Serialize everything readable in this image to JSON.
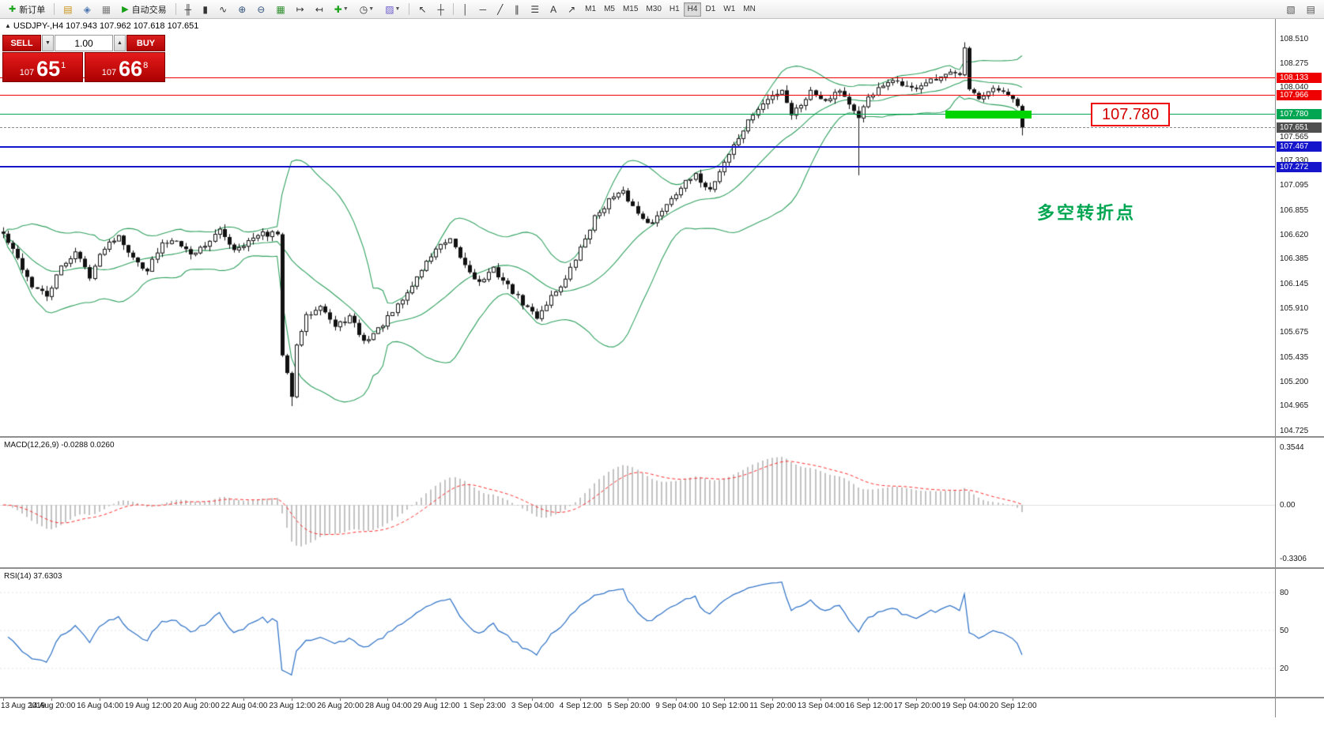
{
  "toolbar": {
    "items": [
      {
        "t": "btn",
        "name": "new-order-button",
        "glyph": "✚",
        "gc": "#1ca41c",
        "label": "新订单"
      },
      {
        "t": "sep"
      },
      {
        "t": "ico",
        "name": "market-watch-icon",
        "glyph": "▤",
        "gc": "#c89010"
      },
      {
        "t": "ico",
        "name": "navigator-icon",
        "glyph": "◈",
        "gc": "#4a74b0"
      },
      {
        "t": "ico",
        "name": "terminal-icon",
        "glyph": "▦",
        "gc": "#7a7a7a"
      },
      {
        "t": "btn",
        "name": "auto-trading-button",
        "glyph": "▶",
        "gc": "#17a017",
        "label": "自动交易"
      },
      {
        "t": "sep"
      },
      {
        "t": "ico",
        "name": "bar-chart-icon",
        "glyph": "╫",
        "gc": "#333333"
      },
      {
        "t": "ico",
        "name": "candlestick-chart-icon",
        "glyph": "▮",
        "gc": "#333333"
      },
      {
        "t": "ico",
        "name": "line-chart-icon",
        "glyph": "∿",
        "gc": "#333333"
      },
      {
        "t": "ico",
        "name": "zoom-in-icon",
        "glyph": "⊕",
        "gc": "#33527d"
      },
      {
        "t": "ico",
        "name": "zoom-out-icon",
        "glyph": "⊖",
        "gc": "#33527d"
      },
      {
        "t": "ico",
        "name": "tile-windows-icon",
        "glyph": "▦",
        "gc": "#2f8f2f"
      },
      {
        "t": "ico",
        "name": "auto-scroll-icon",
        "glyph": "↦",
        "gc": "#333333"
      },
      {
        "t": "ico",
        "name": "chart-shift-icon",
        "glyph": "↤",
        "gc": "#333333"
      },
      {
        "t": "ico",
        "name": "indicators-icon",
        "glyph": "✚",
        "gc": "#1ca41c",
        "dd": true
      },
      {
        "t": "ico",
        "name": "periods-icon",
        "glyph": "◷",
        "gc": "#333333",
        "dd": true
      },
      {
        "t": "ico",
        "name": "templates-icon",
        "glyph": "▨",
        "gc": "#6a5acd",
        "dd": true
      },
      {
        "t": "sep"
      },
      {
        "t": "ico",
        "name": "cursor-icon",
        "glyph": "↖",
        "gc": "#333333"
      },
      {
        "t": "ico",
        "name": "crosshair-icon",
        "glyph": "┼",
        "gc": "#333333"
      },
      {
        "t": "sep"
      },
      {
        "t": "ico",
        "name": "vertical-line-icon",
        "glyph": "│",
        "gc": "#333333"
      },
      {
        "t": "ico",
        "name": "horizontal-line-icon",
        "glyph": "─",
        "gc": "#333333"
      },
      {
        "t": "ico",
        "name": "trendline-icon",
        "glyph": "╱",
        "gc": "#333333"
      },
      {
        "t": "ico",
        "name": "channel-icon",
        "glyph": "∥",
        "gc": "#333333"
      },
      {
        "t": "ico",
        "name": "fibonacci-icon",
        "glyph": "☰",
        "gc": "#333333"
      },
      {
        "t": "ico",
        "name": "text-tool-icon",
        "glyph": "A",
        "gc": "#333333"
      },
      {
        "t": "ico",
        "name": "arrows-tool-icon",
        "glyph": "↗",
        "gc": "#333333"
      },
      {
        "t": "tf"
      },
      {
        "t": "spring"
      },
      {
        "t": "ico",
        "name": "new-chart-icon",
        "glyph": "▧",
        "gc": "#555555"
      },
      {
        "t": "ico",
        "name": "profiles-icon",
        "glyph": "▤",
        "gc": "#555555"
      }
    ],
    "timeframes": [
      "M1",
      "M5",
      "M15",
      "M30",
      "H1",
      "H4",
      "D1",
      "W1",
      "MN"
    ],
    "active_timeframe": "H4"
  },
  "chart": {
    "collapse_icon": "▲",
    "symbol_header": "USDJPY-,H4  107.943 107.962 107.618 107.651",
    "axis_labels": [
      "108.510",
      "108.275",
      "108.040",
      "107.565",
      "107.330",
      "107.095",
      "106.855",
      "106.620",
      "106.385",
      "106.145",
      "105.910",
      "105.675",
      "105.435",
      "105.200",
      "104.965",
      "104.725"
    ],
    "levels": [
      {
        "price": 108.133,
        "label": "108.133",
        "color": "#ee0000",
        "width": 1
      },
      {
        "price": 107.966,
        "label": "107.966",
        "color": "#ee0000",
        "width": 1
      },
      {
        "price": 107.78,
        "label": "107.780",
        "color": "#00A651",
        "width": 1
      },
      {
        "price": 107.467,
        "label": "107.467",
        "color": "#1515cc",
        "width": 2
      },
      {
        "price": 107.272,
        "label": "107.272",
        "color": "#1515cc",
        "width": 2
      }
    ],
    "current_price": {
      "value": 107.651,
      "label": "107.651",
      "badge_bg": "#4f4f4f"
    },
    "annotation": {
      "text": "多空转折点",
      "color": "#00A651"
    },
    "callout": {
      "text": "107.780"
    },
    "highlight": {
      "color": "#00d400"
    }
  },
  "trade_panel": {
    "sell_label": "SELL",
    "buy_label": "BUY",
    "volume": "1.00",
    "vol_down_icon": "▼",
    "vol_up_icon": "▲",
    "sell_price": {
      "prefix": "107",
      "big": "65",
      "sup": "1"
    },
    "buy_price": {
      "prefix": "107",
      "big": "66",
      "sup": "8"
    }
  },
  "macd": {
    "header": "MACD(12,26,9) -0.0288 0.0260",
    "axis_labels": [
      "0.3544",
      "0.00",
      "-0.3306"
    ]
  },
  "rsi": {
    "header": "RSI(14) 37.6303",
    "axis_labels": [
      "80",
      "50",
      "20"
    ]
  },
  "time_axis": {
    "labels": [
      "13 Aug 2019",
      "14 Aug 20:00",
      "16 Aug 04:00",
      "19 Aug 12:00",
      "20 Aug 20:00",
      "22 Aug 04:00",
      "23 Aug 12:00",
      "26 Aug 20:00",
      "28 Aug 04:00",
      "29 Aug 12:00",
      "1 Sep 23:00",
      "3 Sep 04:00",
      "4 Sep 12:00",
      "5 Sep 20:00",
      "9 Sep 04:00",
      "10 Sep 12:00",
      "11 Sep 20:00",
      "13 Sep 04:00",
      "16 Sep 12:00",
      "17 Sep 20:00",
      "19 Sep 04:00",
      "20 Sep 12:00"
    ]
  },
  "chart_data": {
    "type": "candlestick",
    "symbol": "USDJPY-",
    "timeframe": "H4",
    "ohlc_display": {
      "open": 107.943,
      "high": 107.962,
      "low": 107.618,
      "close": 107.651
    },
    "ylim": [
      104.67,
      108.7
    ],
    "num_candles": 213,
    "candles_per_label": 10,
    "close_anchors": [
      [
        0,
        106.62
      ],
      [
        3,
        106.38
      ],
      [
        6,
        106.12
      ],
      [
        9,
        106.02
      ],
      [
        12,
        106.3
      ],
      [
        15,
        106.45
      ],
      [
        18,
        106.22
      ],
      [
        21,
        106.5
      ],
      [
        24,
        106.62
      ],
      [
        27,
        106.38
      ],
      [
        30,
        106.28
      ],
      [
        33,
        106.52
      ],
      [
        36,
        106.58
      ],
      [
        39,
        106.42
      ],
      [
        42,
        106.52
      ],
      [
        45,
        106.65
      ],
      [
        48,
        106.48
      ],
      [
        51,
        106.55
      ],
      [
        54,
        106.62
      ],
      [
        57,
        106.62
      ],
      [
        58,
        105.45
      ],
      [
        59,
        105.28
      ],
      [
        60,
        105.05
      ],
      [
        61,
        105.55
      ],
      [
        63,
        105.82
      ],
      [
        66,
        105.95
      ],
      [
        69,
        105.72
      ],
      [
        72,
        105.82
      ],
      [
        75,
        105.58
      ],
      [
        78,
        105.7
      ],
      [
        81,
        105.86
      ],
      [
        84,
        106.05
      ],
      [
        87,
        106.28
      ],
      [
        90,
        106.48
      ],
      [
        93,
        106.55
      ],
      [
        96,
        106.32
      ],
      [
        99,
        106.15
      ],
      [
        102,
        106.28
      ],
      [
        105,
        106.12
      ],
      [
        108,
        105.95
      ],
      [
        111,
        105.82
      ],
      [
        114,
        106.02
      ],
      [
        117,
        106.18
      ],
      [
        120,
        106.48
      ],
      [
        123,
        106.78
      ],
      [
        126,
        106.95
      ],
      [
        129,
        107.02
      ],
      [
        132,
        106.82
      ],
      [
        135,
        106.72
      ],
      [
        138,
        106.92
      ],
      [
        141,
        107.08
      ],
      [
        144,
        107.18
      ],
      [
        147,
        107.05
      ],
      [
        150,
        107.32
      ],
      [
        153,
        107.55
      ],
      [
        156,
        107.78
      ],
      [
        159,
        107.92
      ],
      [
        162,
        108.02
      ],
      [
        164,
        107.78
      ],
      [
        166,
        107.88
      ],
      [
        168,
        108.0
      ],
      [
        171,
        107.92
      ],
      [
        174,
        108.02
      ],
      [
        176,
        107.88
      ],
      [
        178,
        107.72
      ],
      [
        180,
        107.95
      ],
      [
        183,
        108.05
      ],
      [
        186,
        108.1
      ],
      [
        189,
        108.02
      ],
      [
        192,
        108.08
      ],
      [
        195,
        108.12
      ],
      [
        198,
        108.2
      ],
      [
        199,
        108.16
      ],
      [
        200,
        108.42
      ],
      [
        201,
        108.02
      ],
      [
        203,
        107.95
      ],
      [
        206,
        108.02
      ],
      [
        208,
        107.97
      ],
      [
        210,
        107.92
      ],
      [
        211,
        107.86
      ],
      [
        212,
        107.651
      ]
    ],
    "no_noise": [
      57,
      58,
      59,
      60,
      61,
      199,
      200,
      201,
      202,
      211,
      212
    ],
    "wick_overrides": [
      {
        "i": 60,
        "low": 104.96
      },
      {
        "i": 178,
        "low": 107.19
      },
      {
        "i": 200,
        "high": 108.475
      },
      {
        "i": 212,
        "low": 107.575
      }
    ],
    "levels": [
      108.133,
      107.966,
      107.78,
      107.467,
      107.272
    ],
    "highlight": {
      "price": 107.78,
      "start_candle": 196,
      "end_candle": 214
    },
    "bollinger": {
      "period": 20,
      "deviation": 2,
      "color": "#2fa05e"
    },
    "macd": {
      "fast": 12,
      "slow": 26,
      "signal": 9,
      "value": -0.0288,
      "signal_value": 0.026,
      "axis": [
        0.3544,
        0,
        -0.3306
      ],
      "hist_color": "#c2c2c2",
      "signal_color": "#ff2d2d"
    },
    "rsi": {
      "period": 14,
      "value": 37.6303,
      "axis": [
        80,
        50,
        20
      ],
      "color": "#3576c8"
    }
  }
}
